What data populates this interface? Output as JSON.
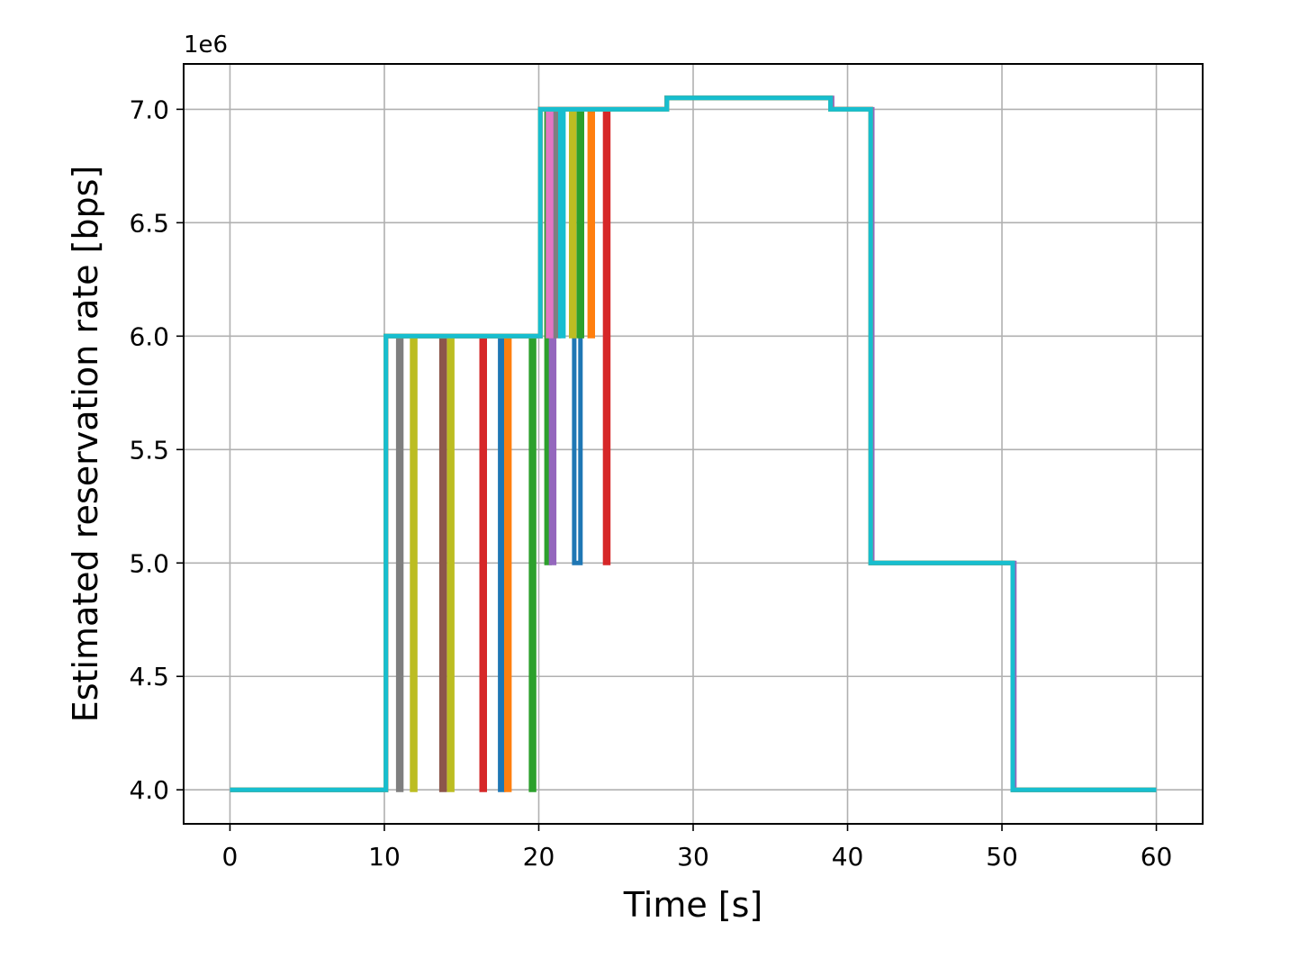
{
  "chart_data": {
    "type": "line",
    "xlabel": "Time [s]",
    "ylabel": "Estimated reservation rate [bps]",
    "y_offset_label": "1e6",
    "xlim": [
      -3,
      63
    ],
    "ylim": [
      3.85,
      7.2
    ],
    "xticks": [
      0,
      10,
      20,
      30,
      40,
      50,
      60
    ],
    "yticks": [
      4.0,
      4.5,
      5.0,
      5.5,
      6.0,
      6.5,
      7.0
    ],
    "ytick_labels": [
      "4.0",
      "4.5",
      "5.0",
      "5.5",
      "6.0",
      "6.5",
      "7.0"
    ],
    "grid": true,
    "legend": "none",
    "series": [
      {
        "color": "#1f77b4",
        "steps": [
          [
            0,
            4.0
          ],
          [
            10.1,
            6.0
          ],
          [
            17.5,
            4.0
          ],
          [
            17.7,
            6.0
          ],
          [
            20.1,
            7.0
          ],
          [
            22.3,
            5.0
          ],
          [
            22.7,
            7.0
          ],
          [
            28.3,
            7.05
          ],
          [
            38.9,
            7.0
          ],
          [
            41.5,
            5.0
          ],
          [
            50.7,
            4.0
          ],
          [
            60,
            4.0
          ]
        ]
      },
      {
        "color": "#ff7f0e",
        "steps": [
          [
            0,
            4.0
          ],
          [
            10.1,
            6.0
          ],
          [
            17.9,
            4.0
          ],
          [
            18.1,
            6.0
          ],
          [
            20.1,
            7.0
          ],
          [
            23.3,
            6.0
          ],
          [
            23.5,
            7.0
          ],
          [
            28.3,
            7.05
          ],
          [
            38.9,
            7.0
          ],
          [
            41.5,
            5.0
          ],
          [
            50.7,
            4.0
          ],
          [
            60,
            4.0
          ]
        ]
      },
      {
        "color": "#2ca02c",
        "steps": [
          [
            0,
            4.0
          ],
          [
            10.1,
            6.0
          ],
          [
            19.5,
            4.0
          ],
          [
            19.7,
            6.0
          ],
          [
            20.1,
            7.0
          ],
          [
            20.5,
            5.0
          ],
          [
            20.7,
            7.0
          ],
          [
            22.6,
            6.0
          ],
          [
            22.8,
            7.0
          ],
          [
            28.3,
            7.05
          ],
          [
            38.9,
            7.0
          ],
          [
            41.5,
            5.0
          ],
          [
            50.7,
            4.0
          ],
          [
            60,
            4.0
          ]
        ]
      },
      {
        "color": "#d62728",
        "steps": [
          [
            0,
            4.0
          ],
          [
            10.1,
            6.0
          ],
          [
            16.3,
            4.0
          ],
          [
            16.5,
            6.0
          ],
          [
            20.1,
            7.0
          ],
          [
            24.3,
            5.0
          ],
          [
            24.5,
            7.0
          ],
          [
            28.3,
            7.05
          ],
          [
            38.9,
            7.0
          ],
          [
            41.5,
            5.0
          ],
          [
            50.7,
            4.0
          ],
          [
            60,
            4.0
          ]
        ]
      },
      {
        "color": "#9467bd",
        "steps": [
          [
            0,
            4.0
          ],
          [
            10.1,
            6.0
          ],
          [
            20.1,
            7.0
          ],
          [
            20.8,
            5.0
          ],
          [
            21.0,
            7.0
          ],
          [
            28.3,
            7.05
          ],
          [
            39.0,
            7.0
          ],
          [
            41.6,
            5.0
          ],
          [
            50.8,
            4.0
          ],
          [
            60,
            4.0
          ]
        ]
      },
      {
        "color": "#8c564b",
        "steps": [
          [
            0,
            4.0
          ],
          [
            10.1,
            6.0
          ],
          [
            13.7,
            4.0
          ],
          [
            13.9,
            6.0
          ],
          [
            20.1,
            7.0
          ],
          [
            28.3,
            7.05
          ],
          [
            38.9,
            7.0
          ],
          [
            41.5,
            5.0
          ],
          [
            50.7,
            4.0
          ],
          [
            60,
            4.0
          ]
        ]
      },
      {
        "color": "#e377c2",
        "steps": [
          [
            0,
            4.0
          ],
          [
            10.1,
            6.0
          ],
          [
            20.1,
            7.0
          ],
          [
            20.6,
            6.0
          ],
          [
            20.8,
            7.0
          ],
          [
            28.3,
            7.05
          ],
          [
            38.9,
            7.0
          ],
          [
            41.5,
            5.0
          ],
          [
            50.7,
            4.0
          ],
          [
            60,
            4.0
          ]
        ]
      },
      {
        "color": "#7f7f7f",
        "steps": [
          [
            0,
            4.0
          ],
          [
            10.1,
            6.0
          ],
          [
            10.9,
            4.0
          ],
          [
            11.1,
            6.0
          ],
          [
            20.1,
            7.0
          ],
          [
            21.1,
            6.0
          ],
          [
            21.3,
            7.0
          ],
          [
            28.3,
            7.05
          ],
          [
            38.9,
            7.0
          ],
          [
            41.5,
            5.0
          ],
          [
            50.7,
            4.0
          ],
          [
            60,
            4.0
          ]
        ]
      },
      {
        "color": "#bcbd22",
        "steps": [
          [
            0,
            4.0
          ],
          [
            10.1,
            6.0
          ],
          [
            11.8,
            4.0
          ],
          [
            12.0,
            6.0
          ],
          [
            14.2,
            4.0
          ],
          [
            14.4,
            6.0
          ],
          [
            20.1,
            7.0
          ],
          [
            22.1,
            6.0
          ],
          [
            22.3,
            7.0
          ],
          [
            28.3,
            7.05
          ],
          [
            38.9,
            7.0
          ],
          [
            41.5,
            5.0
          ],
          [
            50.7,
            4.0
          ],
          [
            60,
            4.0
          ]
        ]
      },
      {
        "color": "#17becf",
        "steps": [
          [
            0,
            4.0
          ],
          [
            10.1,
            4.0
          ],
          [
            10.1,
            6.0
          ],
          [
            20.1,
            6.0
          ],
          [
            20.1,
            7.0
          ],
          [
            21.4,
            6.0
          ],
          [
            21.6,
            7.0
          ],
          [
            28.3,
            7.0
          ],
          [
            28.3,
            7.05
          ],
          [
            38.9,
            7.05
          ],
          [
            38.9,
            7.0
          ],
          [
            41.5,
            7.0
          ],
          [
            41.5,
            5.0
          ],
          [
            50.7,
            5.0
          ],
          [
            50.7,
            4.0
          ],
          [
            60,
            4.0
          ]
        ]
      }
    ]
  }
}
